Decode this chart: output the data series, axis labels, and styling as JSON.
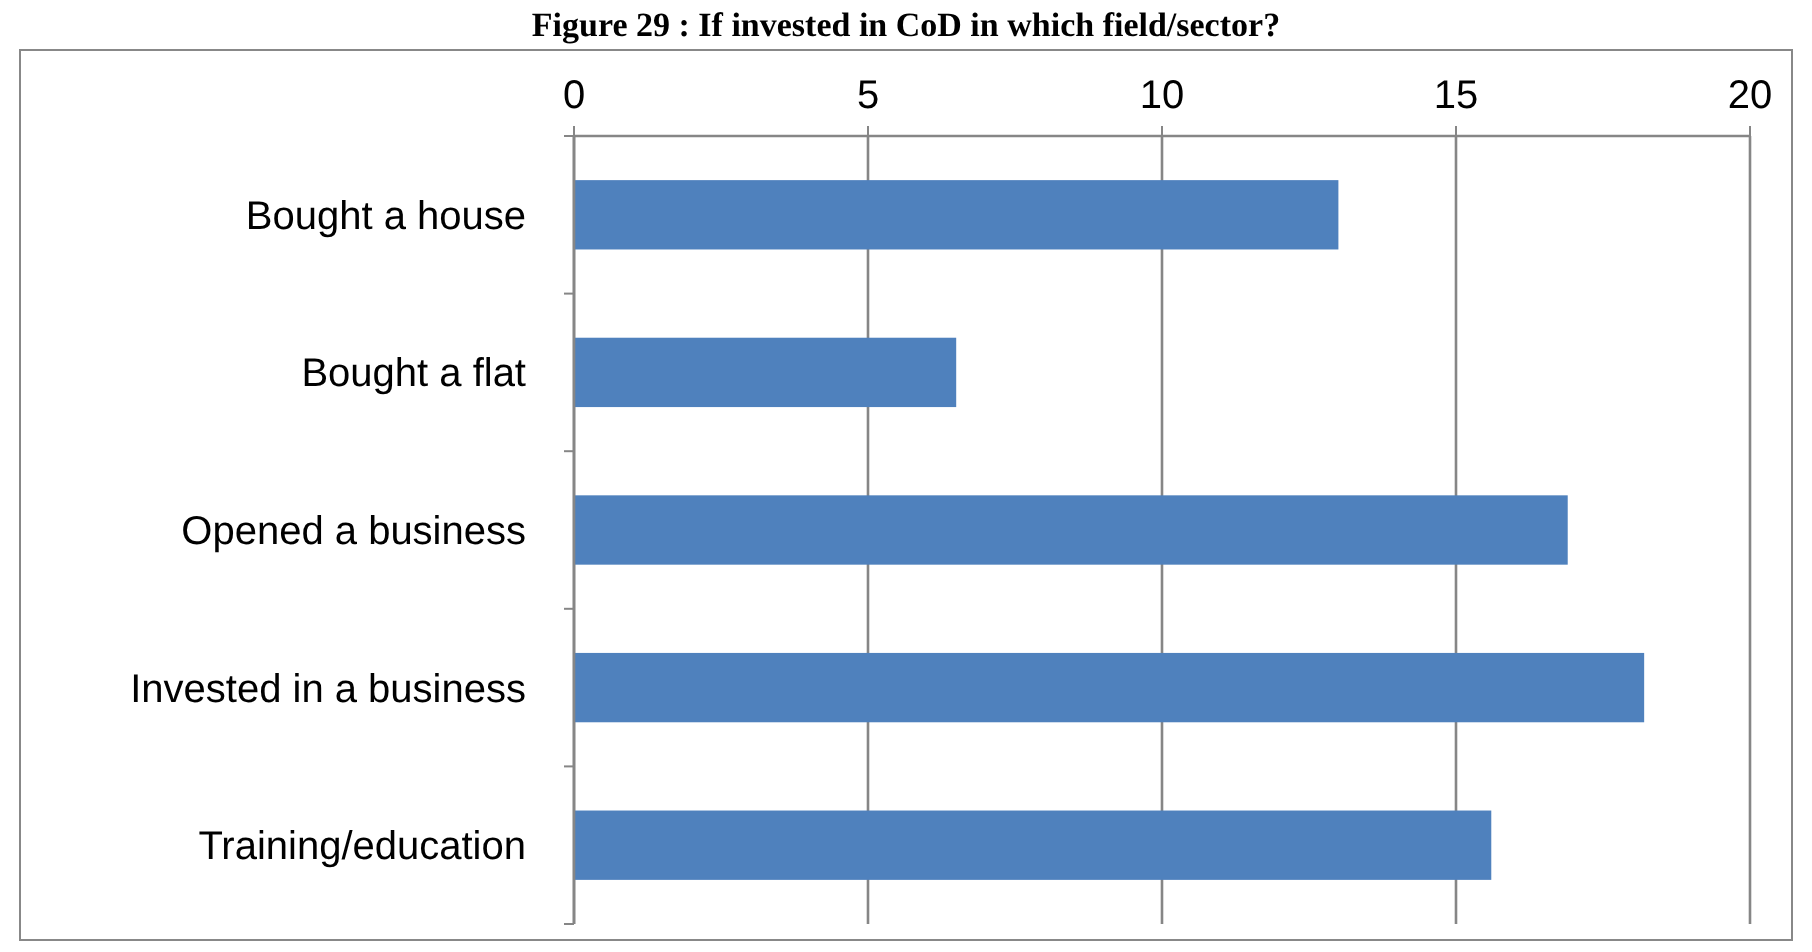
{
  "chart_data": {
    "type": "bar",
    "orientation": "horizontal",
    "title": "Figure 29 : If invested in CoD in which field/sector?",
    "categories": [
      "Bought a house",
      "Bought a flat",
      "Opened a business",
      "Invested in a business",
      "Training/education"
    ],
    "values": [
      13.0,
      6.5,
      16.9,
      18.2,
      15.6
    ],
    "color": "#4f81bd",
    "xlim": [
      0,
      20
    ],
    "xticks": [
      0,
      5,
      10,
      15,
      20
    ],
    "grid": "x"
  }
}
